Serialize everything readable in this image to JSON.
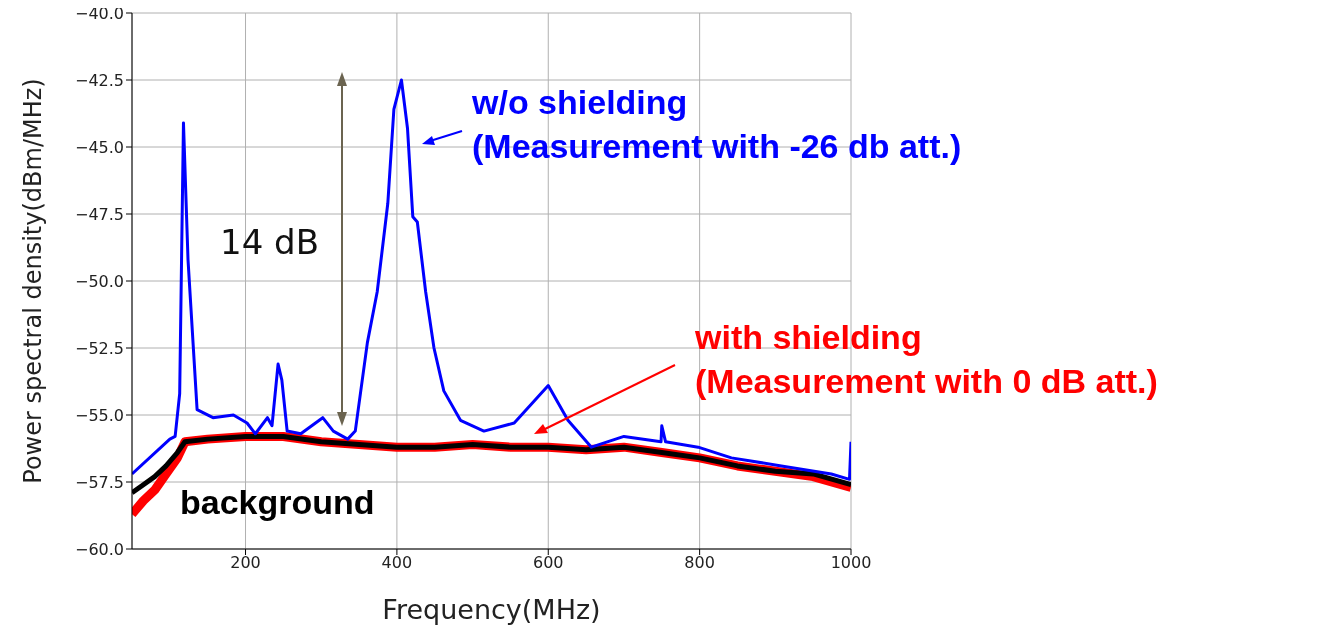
{
  "chart_data": {
    "type": "line",
    "xlabel": "Frequency(MHz)",
    "ylabel": "Power spectral density(dBm/MHz)",
    "xlim": [
      50,
      1000
    ],
    "xticks": [
      200,
      400,
      600,
      800,
      1000
    ],
    "ylim": [
      -60,
      -40
    ],
    "yticks": [
      {
        "value": -60,
        "label": "−60.0"
      },
      {
        "value": -57.5,
        "label": "−57.5"
      },
      {
        "value": -55,
        "label": "−55.0"
      },
      {
        "value": -52.5,
        "label": "−52.5"
      },
      {
        "value": -50,
        "label": "−50.0"
      },
      {
        "value": -47.5,
        "label": "−47.5"
      },
      {
        "value": -45,
        "label": "−45.0"
      },
      {
        "value": -42.5,
        "label": "−42.5"
      },
      {
        "value": -40,
        "label": "−40.0"
      }
    ],
    "grid": true,
    "marker": "none",
    "line_style": "solid",
    "annotations": [
      "14 dB"
    ],
    "series": [
      {
        "name": "with shielding (Measurement with 0 dB att.)",
        "color": "#ff0000",
        "x": [
          50,
          65,
          80,
          95,
          110,
          120,
          150,
          200,
          250,
          300,
          350,
          400,
          450,
          500,
          550,
          600,
          650,
          700,
          750,
          800,
          850,
          900,
          950,
          1000
        ],
        "values": [
          -58.7,
          -58.2,
          -57.8,
          -57.2,
          -56.6,
          -56.0,
          -55.9,
          -55.8,
          -55.8,
          -56.0,
          -56.1,
          -56.2,
          -56.2,
          -56.1,
          -56.2,
          -56.2,
          -56.3,
          -56.2,
          -56.4,
          -56.6,
          -56.9,
          -57.1,
          -57.3,
          -57.7
        ]
      },
      {
        "name": "background",
        "color": "#000000",
        "x": [
          50,
          65,
          80,
          95,
          110,
          120,
          150,
          200,
          250,
          300,
          350,
          400,
          450,
          500,
          550,
          600,
          650,
          700,
          750,
          800,
          850,
          900,
          950,
          1000
        ],
        "values": [
          -57.9,
          -57.6,
          -57.3,
          -56.9,
          -56.4,
          -56.0,
          -55.9,
          -55.8,
          -55.8,
          -56.0,
          -56.1,
          -56.2,
          -56.2,
          -56.1,
          -56.2,
          -56.2,
          -56.3,
          -56.2,
          -56.4,
          -56.6,
          -56.9,
          -57.1,
          -57.2,
          -57.6
        ]
      },
      {
        "name": "w/o shielding (Measurement with -26 db att.)",
        "color": "#0000ff",
        "x": [
          50,
          100,
          107,
          113,
          118,
          124,
          136,
          157,
          184,
          202,
          213,
          229,
          235,
          243,
          248,
          255,
          273,
          302,
          316,
          335,
          345,
          361,
          374,
          388,
          396,
          406,
          414,
          421,
          427,
          438,
          449,
          462,
          484,
          515,
          555,
          600,
          626,
          657,
          700,
          749,
          750,
          755,
          798,
          842,
          908,
          974,
          998,
          1000
        ],
        "values": [
          -57.2,
          -55.9,
          -55.8,
          -54.2,
          -44.1,
          -49.2,
          -54.8,
          -55.1,
          -55.0,
          -55.3,
          -55.7,
          -55.1,
          -55.4,
          -53.1,
          -53.7,
          -55.6,
          -55.7,
          -55.1,
          -55.6,
          -55.9,
          -55.6,
          -52.3,
          -50.4,
          -47.1,
          -43.6,
          -42.5,
          -44.3,
          -47.6,
          -47.8,
          -50.4,
          -52.5,
          -54.1,
          -55.2,
          -55.6,
          -55.3,
          -53.9,
          -55.2,
          -56.2,
          -55.8,
          -56.0,
          -55.4,
          -56.0,
          -56.2,
          -56.6,
          -56.9,
          -57.2,
          -57.4,
          -56.0
        ]
      }
    ]
  }
}
